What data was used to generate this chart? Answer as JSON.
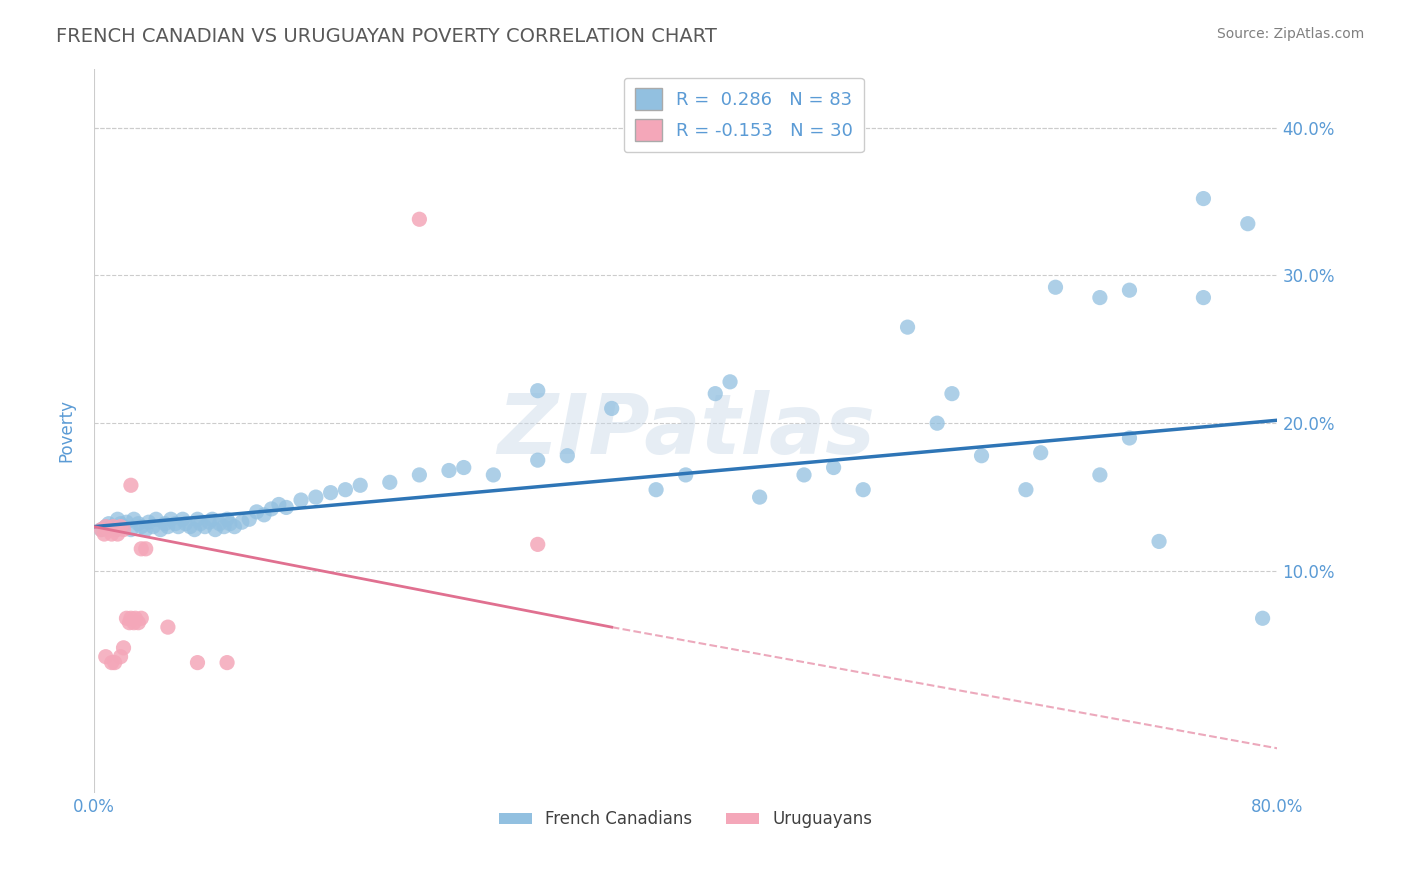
{
  "title": "FRENCH CANADIAN VS URUGUAYAN POVERTY CORRELATION CHART",
  "source": "Source: ZipAtlas.com",
  "ylabel": "Poverty",
  "xlim": [
    0.0,
    0.8
  ],
  "ylim": [
    -0.05,
    0.44
  ],
  "ytick_positions": [
    0.1,
    0.2,
    0.3,
    0.4
  ],
  "ytick_labels": [
    "10.0%",
    "20.0%",
    "30.0%",
    "40.0%"
  ],
  "xtick_positions": [
    0.0,
    0.1,
    0.2,
    0.3,
    0.4,
    0.5,
    0.6,
    0.7,
    0.8
  ],
  "xtick_labels": [
    "0.0%",
    "",
    "",
    "",
    "",
    "",
    "",
    "",
    "80.0%"
  ],
  "grid_color": "#cccccc",
  "background_color": "#ffffff",
  "blue_color": "#92c0e0",
  "pink_color": "#f4a7b9",
  "blue_line_color": "#2e75b6",
  "pink_line_color": "#e07090",
  "title_color": "#595959",
  "source_color": "#808080",
  "axis_label_color": "#5b9bd5",
  "R_blue": 0.286,
  "N_blue": 83,
  "R_pink": -0.153,
  "N_pink": 30,
  "legend_label_blue": "French Canadians",
  "legend_label_pink": "Uruguayans",
  "blue_x": [
    0.005,
    0.008,
    0.01,
    0.012,
    0.015,
    0.016,
    0.018,
    0.02,
    0.022,
    0.025,
    0.027,
    0.03,
    0.032,
    0.035,
    0.037,
    0.04,
    0.042,
    0.045,
    0.048,
    0.05,
    0.052,
    0.055,
    0.057,
    0.06,
    0.062,
    0.065,
    0.068,
    0.07,
    0.072,
    0.075,
    0.078,
    0.08,
    0.082,
    0.085,
    0.088,
    0.09,
    0.092,
    0.095,
    0.1,
    0.105,
    0.11,
    0.115,
    0.12,
    0.125,
    0.13,
    0.14,
    0.15,
    0.16,
    0.17,
    0.18,
    0.2,
    0.22,
    0.24,
    0.25,
    0.27,
    0.3,
    0.32,
    0.35,
    0.38,
    0.4,
    0.43,
    0.45,
    0.48,
    0.5,
    0.52,
    0.55,
    0.58,
    0.6,
    0.63,
    0.65,
    0.68,
    0.7,
    0.72,
    0.75,
    0.78,
    0.3,
    0.42,
    0.57,
    0.64,
    0.7,
    0.75,
    0.68,
    0.79
  ],
  "blue_y": [
    0.128,
    0.13,
    0.132,
    0.13,
    0.128,
    0.135,
    0.132,
    0.13,
    0.133,
    0.128,
    0.135,
    0.132,
    0.13,
    0.128,
    0.133,
    0.13,
    0.135,
    0.128,
    0.132,
    0.13,
    0.135,
    0.132,
    0.13,
    0.135,
    0.132,
    0.13,
    0.128,
    0.135,
    0.132,
    0.13,
    0.133,
    0.135,
    0.128,
    0.132,
    0.13,
    0.135,
    0.132,
    0.13,
    0.133,
    0.135,
    0.14,
    0.138,
    0.142,
    0.145,
    0.143,
    0.148,
    0.15,
    0.153,
    0.155,
    0.158,
    0.16,
    0.165,
    0.168,
    0.17,
    0.165,
    0.175,
    0.178,
    0.21,
    0.155,
    0.165,
    0.228,
    0.15,
    0.165,
    0.17,
    0.155,
    0.265,
    0.22,
    0.178,
    0.155,
    0.292,
    0.285,
    0.19,
    0.12,
    0.352,
    0.335,
    0.222,
    0.22,
    0.2,
    0.18,
    0.29,
    0.285,
    0.165,
    0.068
  ],
  "pink_x": [
    0.005,
    0.007,
    0.008,
    0.01,
    0.012,
    0.013,
    0.015,
    0.016,
    0.018,
    0.02,
    0.022,
    0.024,
    0.025,
    0.027,
    0.028,
    0.03,
    0.032,
    0.035,
    0.012,
    0.008,
    0.014,
    0.018,
    0.025,
    0.032,
    0.05,
    0.07,
    0.09,
    0.22,
    0.3,
    0.02
  ],
  "pink_y": [
    0.128,
    0.125,
    0.13,
    0.128,
    0.125,
    0.13,
    0.128,
    0.125,
    0.13,
    0.128,
    0.068,
    0.065,
    0.068,
    0.065,
    0.068,
    0.065,
    0.068,
    0.115,
    0.038,
    0.042,
    0.038,
    0.042,
    0.158,
    0.115,
    0.062,
    0.038,
    0.038,
    0.338,
    0.118,
    0.048
  ],
  "watermark": "ZIPatlas"
}
